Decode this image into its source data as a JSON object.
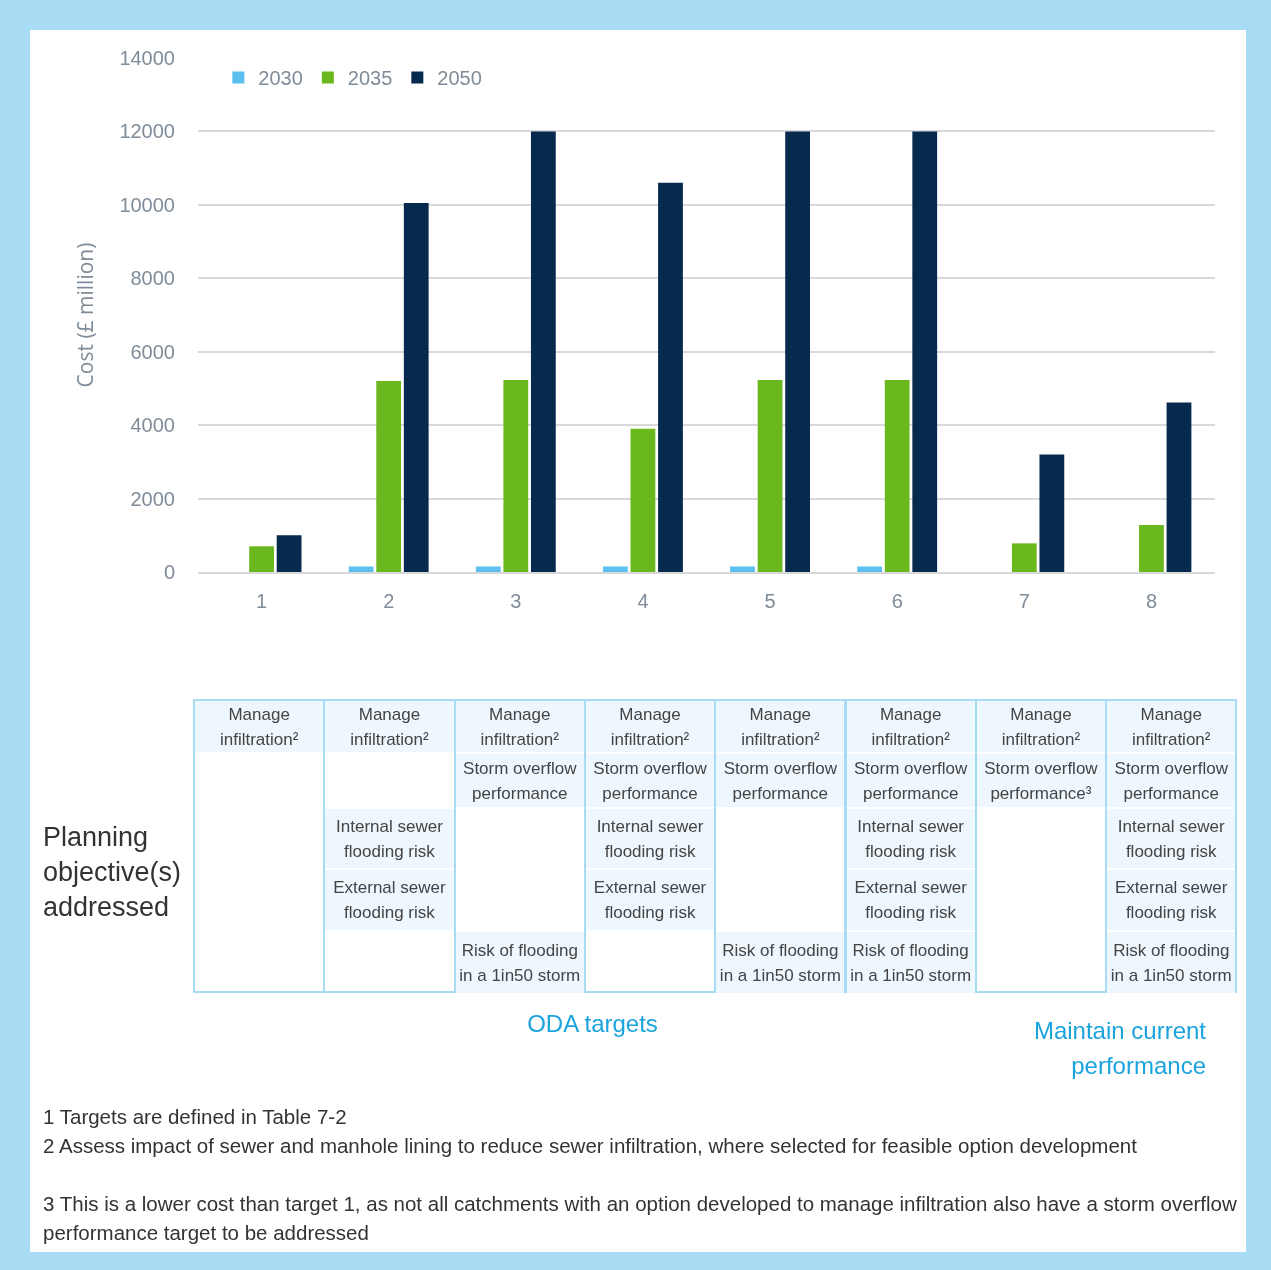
{
  "chart_data": {
    "type": "bar",
    "ylabel": "Cost (£ million)",
    "categories": [
      "1",
      "2",
      "3",
      "4",
      "5",
      "6",
      "7",
      "8"
    ],
    "series": [
      {
        "name": "2030",
        "color": "#5bc0f0",
        "values": [
          0,
          150,
          150,
          150,
          150,
          150,
          0,
          0
        ]
      },
      {
        "name": "2035",
        "color": "#6ab81e",
        "values": [
          700,
          5200,
          5230,
          3900,
          5230,
          5230,
          780,
          1280
        ]
      },
      {
        "name": "2050",
        "color": "#062a4e",
        "values": [
          1000,
          10050,
          12000,
          10600,
          12000,
          12000,
          3200,
          4620
        ]
      }
    ],
    "ylim": [
      0,
      14000
    ],
    "yticks": [
      0,
      2000,
      4000,
      6000,
      8000,
      10000,
      12000,
      14000
    ],
    "grid": "y",
    "legend": "top left",
    "annotations": [
      "Manage infiltration²",
      "Manage infiltration²",
      "Internal sewer flooding risk",
      "External sewer flooding risk",
      "Manage infiltration²",
      "Storm overflow performance",
      "Risk of flooding in a 1in50 storm",
      "Manage infiltration²",
      "Storm overflow performance",
      "Internal sewer flooding risk",
      "External sewer flooding risk",
      "Manage infiltration²",
      "Storm overflow performance",
      "Risk of flooding in a 1in50 storm",
      "Manage infiltration²",
      "Storm overflow performance",
      "Internal sewer flooding risk",
      "External sewer flooding risk",
      "Risk of flooding in a 1in50 storm",
      "Manage infiltration²",
      "Storm overflow performance³",
      "Manage infiltration²",
      "Storm overflow performance",
      "Internal sewer flooding risk",
      "External sewer flooding risk",
      "Risk of flooding in a 1in50 storm",
      "Planning objective(s) addressed",
      "ODA targets",
      "Maintain current performance",
      "1 Targets are defined in Table 7-2",
      "2 Assess impact of sewer and manhole lining to reduce sewer infiltration, where selected for feasible option development",
      "3 This is a lower cost than target 1, as not all catchments with an option developed to manage infiltration also have a storm overflow performance target to be addressed"
    ]
  }
}
